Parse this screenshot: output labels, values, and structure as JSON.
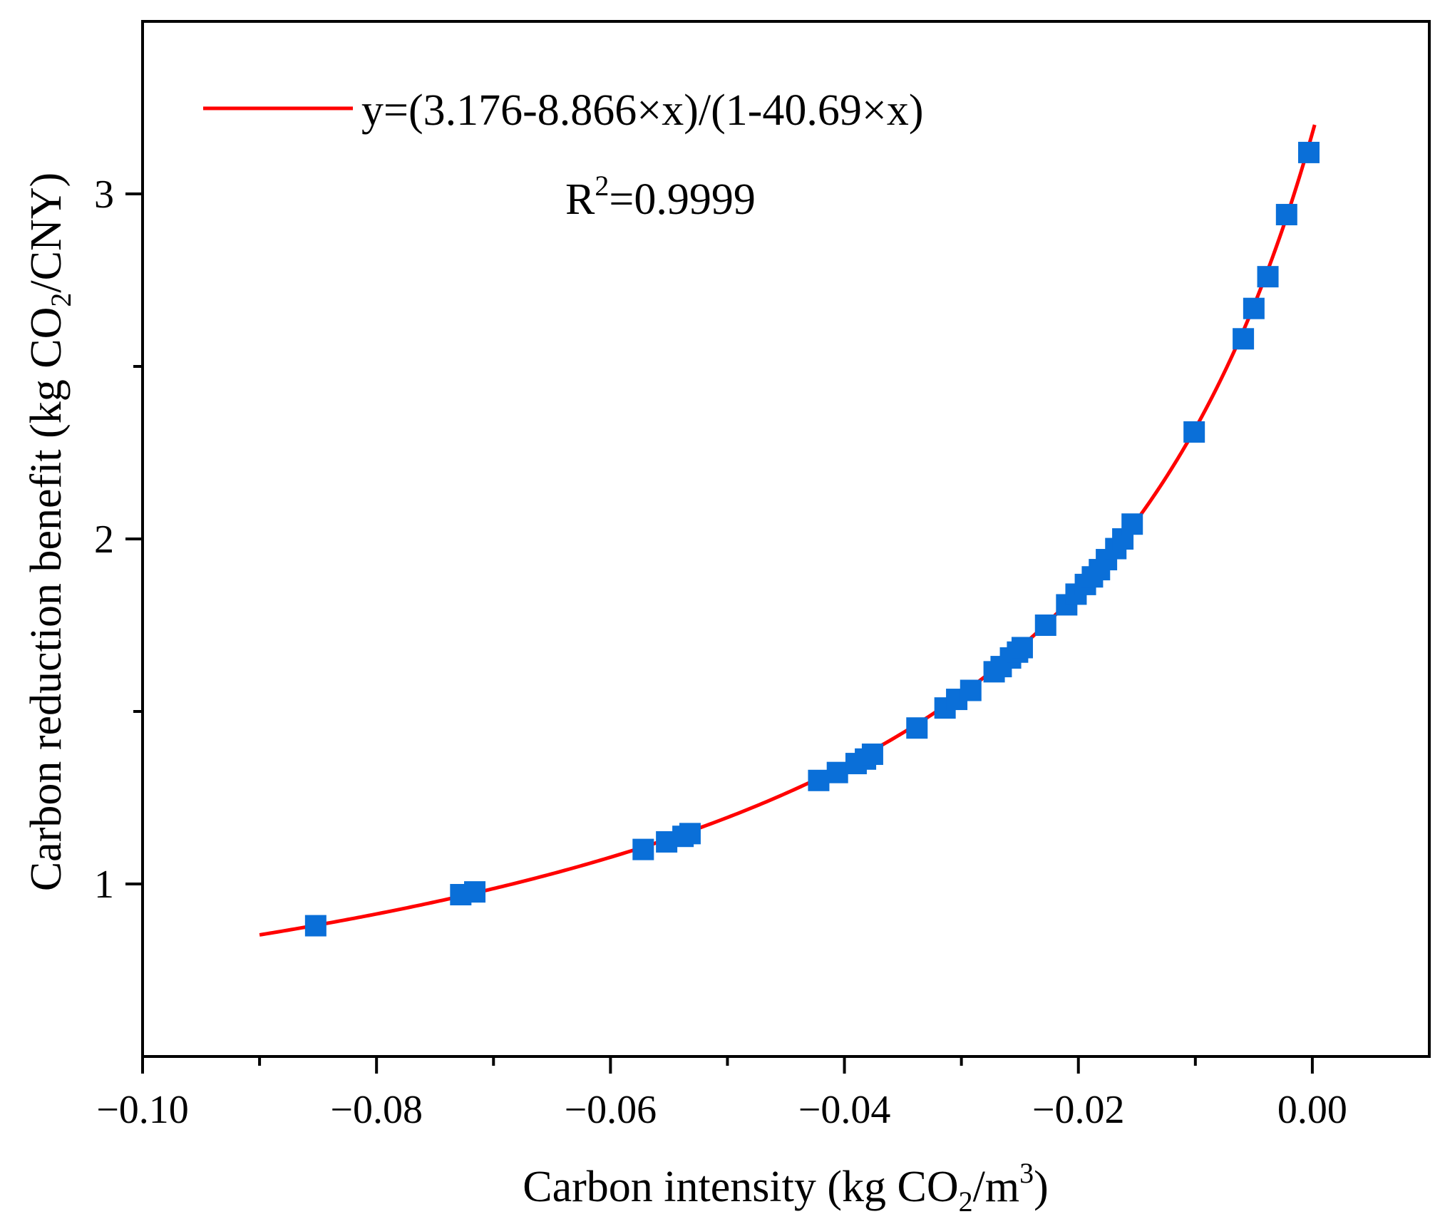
{
  "chart_data": {
    "type": "scatter",
    "xlabel": {
      "main": "Carbon intensity (kg CO",
      "sub": "2",
      "mid": "/m",
      "sup": "3",
      "end": ")"
    },
    "ylabel": {
      "main": "Carbon reduction benefit  (kg CO",
      "sub": "2",
      "end": "/CNY)"
    },
    "xlim": [
      -0.1,
      0.01
    ],
    "ylim": [
      0.5,
      3.5
    ],
    "x_ticks": [
      -0.1,
      -0.08,
      -0.06,
      -0.04,
      -0.02,
      0.0
    ],
    "x_tick_labels": [
      "−0.10",
      "−0.08",
      "−0.06",
      "−0.04",
      "−0.02",
      "0.00"
    ],
    "y_ticks": [
      1,
      2,
      3
    ],
    "y_tick_labels": [
      "1",
      "2",
      "3"
    ],
    "grid": false,
    "legend_position": "top-left",
    "fit": {
      "label": "y=(3.176-8.866×x)/(1-40.69×x)",
      "r2_label": {
        "main": "R",
        "sup": "2",
        "end": "=0.9999"
      },
      "a": 3.176,
      "b": -8.866,
      "c": -40.69,
      "x_range": [
        -0.09,
        0.0002
      ],
      "color": "#ff0000"
    },
    "points_color": "#0a6fd8",
    "points": [
      {
        "x": -0.0852,
        "y": 0.879
      },
      {
        "x": -0.0728,
        "y": 0.969
      },
      {
        "x": -0.0716,
        "y": 0.977
      },
      {
        "x": -0.0572,
        "y": 1.1
      },
      {
        "x": -0.0552,
        "y": 1.122
      },
      {
        "x": -0.0538,
        "y": 1.138
      },
      {
        "x": -0.0532,
        "y": 1.146
      },
      {
        "x": -0.0422,
        "y": 1.3
      },
      {
        "x": -0.0406,
        "y": 1.323
      },
      {
        "x": -0.039,
        "y": 1.349
      },
      {
        "x": -0.0382,
        "y": 1.362
      },
      {
        "x": -0.0376,
        "y": 1.376
      },
      {
        "x": -0.0338,
        "y": 1.452
      },
      {
        "x": -0.0314,
        "y": 1.51
      },
      {
        "x": -0.0304,
        "y": 1.535
      },
      {
        "x": -0.0292,
        "y": 1.561
      },
      {
        "x": -0.0272,
        "y": 1.615
      },
      {
        "x": -0.0266,
        "y": 1.63
      },
      {
        "x": -0.0258,
        "y": 1.655
      },
      {
        "x": -0.0252,
        "y": 1.672
      },
      {
        "x": -0.0248,
        "y": 1.685
      },
      {
        "x": -0.0228,
        "y": 1.75
      },
      {
        "x": -0.021,
        "y": 1.809
      },
      {
        "x": -0.0202,
        "y": 1.84
      },
      {
        "x": -0.0194,
        "y": 1.868
      },
      {
        "x": -0.0188,
        "y": 1.89
      },
      {
        "x": -0.0182,
        "y": 1.911
      },
      {
        "x": -0.0176,
        "y": 1.94
      },
      {
        "x": -0.0168,
        "y": 1.972
      },
      {
        "x": -0.0162,
        "y": 2.0
      },
      {
        "x": -0.0154,
        "y": 2.043
      },
      {
        "x": -0.0101,
        "y": 2.31
      },
      {
        "x": -0.0059,
        "y": 2.58
      },
      {
        "x": -0.005,
        "y": 2.668
      },
      {
        "x": -0.0038,
        "y": 2.76
      },
      {
        "x": -0.0022,
        "y": 2.94
      },
      {
        "x": -0.0003,
        "y": 3.12
      }
    ]
  }
}
